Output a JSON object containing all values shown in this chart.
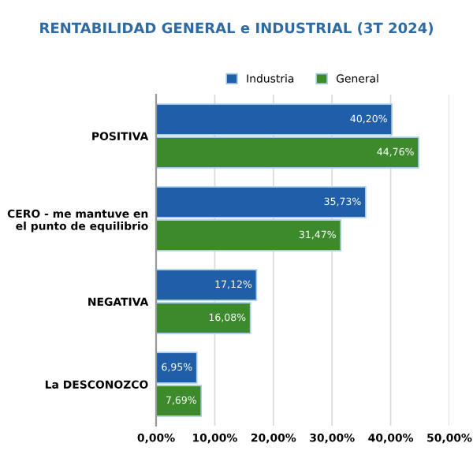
{
  "chart_data": {
    "type": "bar",
    "orientation": "horizontal",
    "title": "RENTABILIDAD GENERAL e INDUSTRIAL (3T 2024)",
    "categories": [
      "POSITIVA",
      "CERO - me mantuve en el punto de equilibrio",
      "NEGATIVA",
      "La DESCONOZCO"
    ],
    "series": [
      {
        "name": "Industria",
        "color": "#1f5ea8",
        "values": [
          40.2,
          35.73,
          17.12,
          6.95
        ],
        "value_labels": [
          "40,20%",
          "35,73%",
          "17,12%",
          "6,95%"
        ]
      },
      {
        "name": "General",
        "color": "#3d8a2c",
        "values": [
          44.76,
          31.47,
          16.08,
          7.69
        ],
        "value_labels": [
          "44,76%",
          "31,47%",
          "16,08%",
          "7,69%"
        ]
      }
    ],
    "xlim": [
      0,
      50
    ],
    "xticks": [
      {
        "value": 0,
        "label": "0,00%"
      },
      {
        "value": 10,
        "label": "10,00%"
      },
      {
        "value": 20,
        "label": "20,00%"
      },
      {
        "value": 30,
        "label": "30,00%"
      },
      {
        "value": 40,
        "label": "40,00%"
      },
      {
        "value": 50,
        "label": "50,00%"
      }
    ],
    "grid": "x",
    "legend": "top"
  }
}
